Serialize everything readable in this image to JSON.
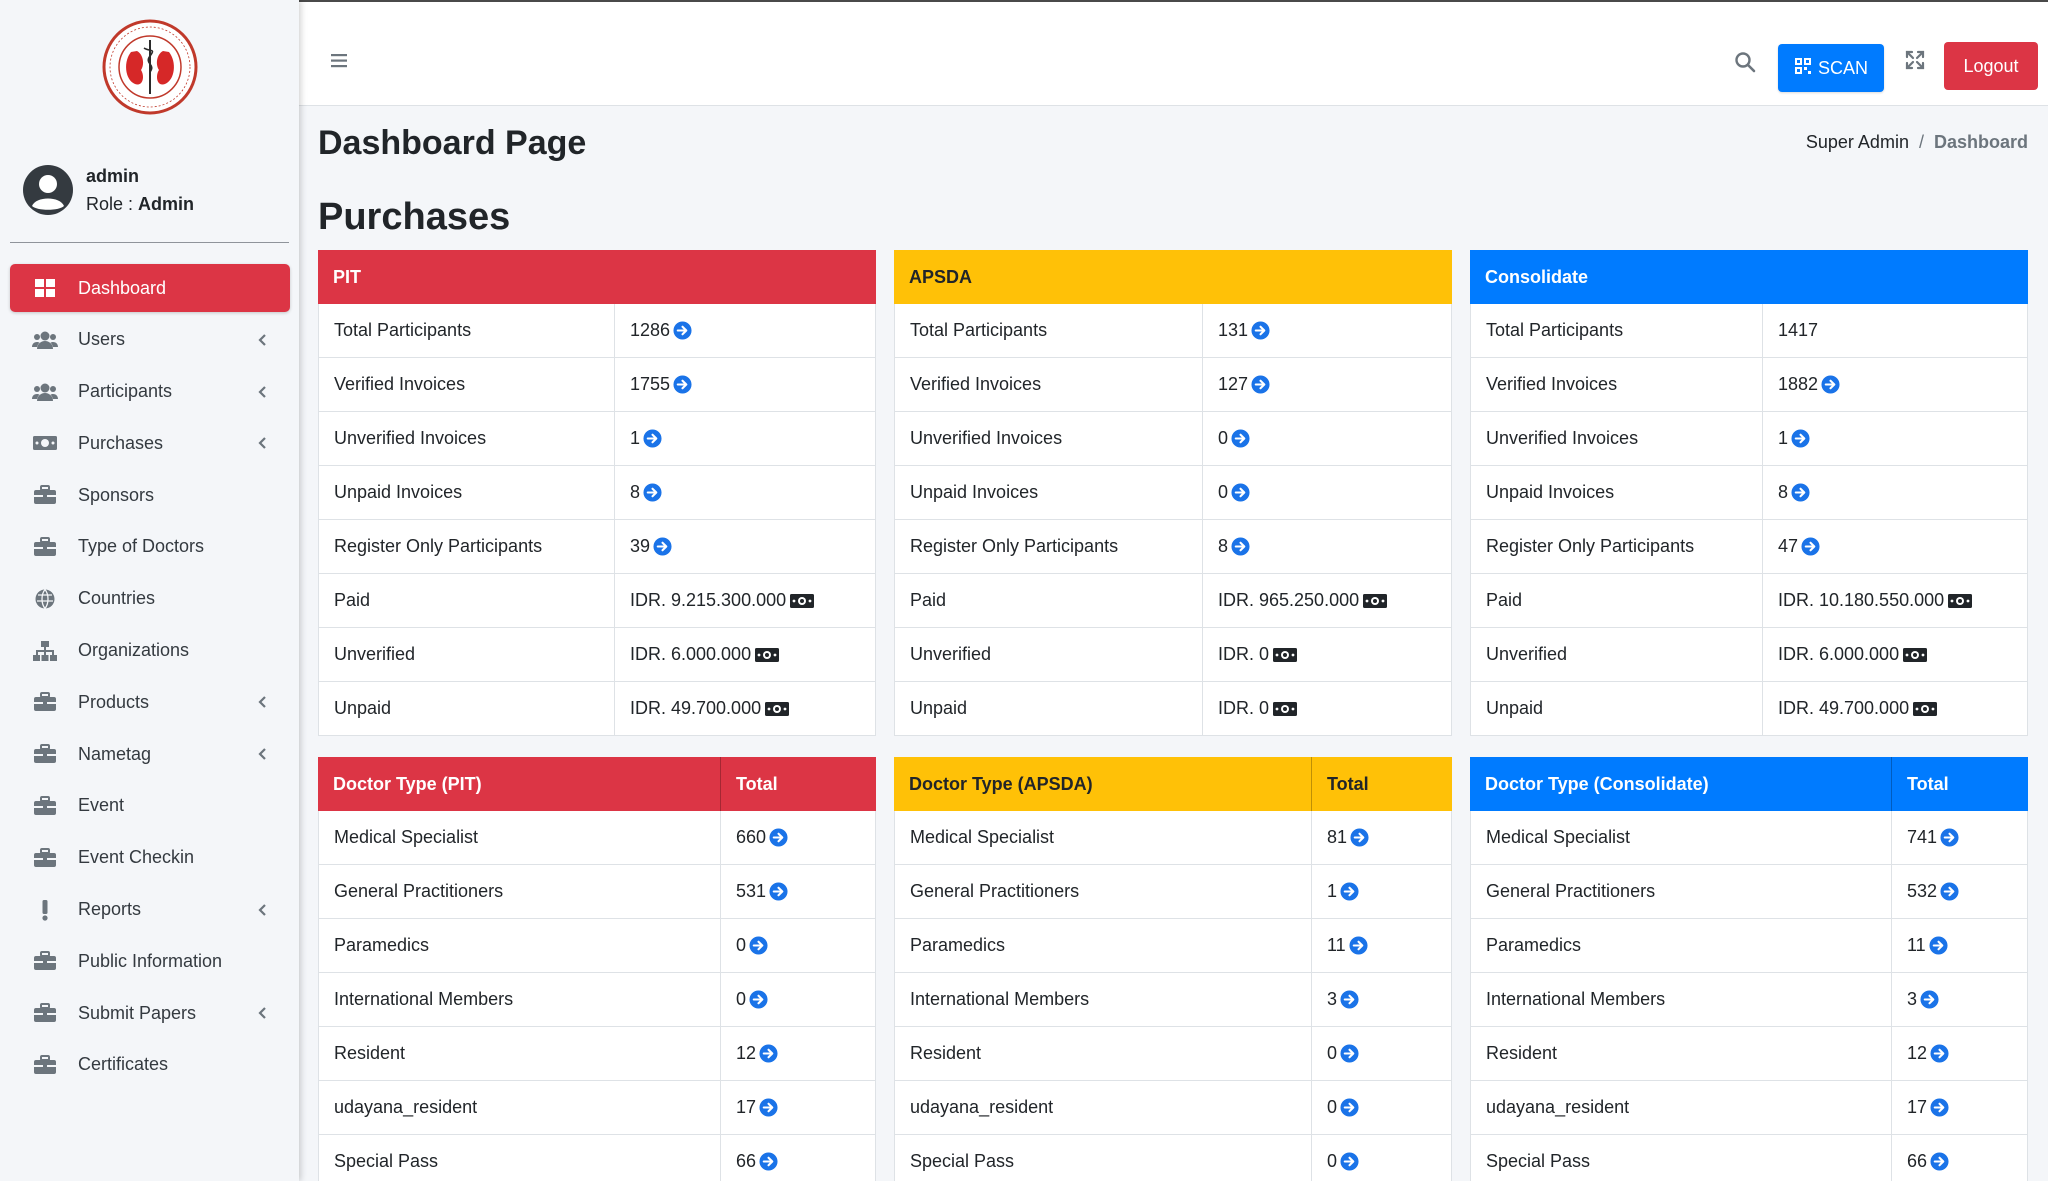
{
  "sidebar": {
    "user": {
      "name": "admin",
      "role_label": "Role : ",
      "role": "Admin"
    },
    "items": [
      {
        "label": "Dashboard",
        "icon": "dashboard-grid-icon",
        "active": true,
        "chevron": false
      },
      {
        "label": "Users",
        "icon": "users-icon",
        "chevron": true
      },
      {
        "label": "Participants",
        "icon": "users-icon",
        "chevron": true
      },
      {
        "label": "Purchases",
        "icon": "money-bill-icon",
        "chevron": true
      },
      {
        "label": "Sponsors",
        "icon": "briefcase-icon",
        "chevron": false
      },
      {
        "label": "Type of Doctors",
        "icon": "briefcase-icon",
        "chevron": false
      },
      {
        "label": "Countries",
        "icon": "globe-icon",
        "chevron": false
      },
      {
        "label": "Organizations",
        "icon": "sitemap-icon",
        "chevron": false
      },
      {
        "label": "Products",
        "icon": "briefcase-icon",
        "chevron": true
      },
      {
        "label": "Nametag",
        "icon": "briefcase-icon",
        "chevron": true
      },
      {
        "label": "Event",
        "icon": "briefcase-icon",
        "chevron": false
      },
      {
        "label": "Event Checkin",
        "icon": "briefcase-icon",
        "chevron": false
      },
      {
        "label": "Reports",
        "icon": "exclamation-icon",
        "chevron": true
      },
      {
        "label": "Public Information",
        "icon": "briefcase-icon",
        "chevron": false
      },
      {
        "label": "Submit Papers",
        "icon": "briefcase-icon",
        "chevron": true
      },
      {
        "label": "Certificates",
        "icon": "briefcase-icon",
        "chevron": false
      }
    ]
  },
  "topbar": {
    "scan_label": "SCAN",
    "logout_label": "Logout"
  },
  "page": {
    "title": "Dashboard Page",
    "breadcrumb": {
      "parent": "Super Admin",
      "separator": "/",
      "current": "Dashboard"
    },
    "section_title": "Purchases"
  },
  "purchase_cards": [
    {
      "title": "PIT",
      "color": "#dc3545",
      "rows": [
        {
          "label": "Total Participants",
          "value": "1286",
          "icon": "arrow"
        },
        {
          "label": "Verified Invoices",
          "value": "1755",
          "icon": "arrow"
        },
        {
          "label": "Unverified Invoices",
          "value": "1",
          "icon": "arrow"
        },
        {
          "label": "Unpaid Invoices",
          "value": "8",
          "icon": "arrow"
        },
        {
          "label": "Register Only Participants",
          "value": "39",
          "icon": "arrow"
        },
        {
          "label": "Paid",
          "value": "IDR. 9.215.300.000",
          "icon": "money"
        },
        {
          "label": "Unverified",
          "value": "IDR. 6.000.000",
          "icon": "money"
        },
        {
          "label": "Unpaid",
          "value": "IDR. 49.700.000",
          "icon": "money"
        }
      ]
    },
    {
      "title": "APSDA",
      "color": "#ffc107",
      "rows": [
        {
          "label": "Total Participants",
          "value": "131",
          "icon": "arrow"
        },
        {
          "label": "Verified Invoices",
          "value": "127",
          "icon": "arrow"
        },
        {
          "label": "Unverified Invoices",
          "value": "0",
          "icon": "arrow"
        },
        {
          "label": "Unpaid Invoices",
          "value": "0",
          "icon": "arrow"
        },
        {
          "label": "Register Only Participants",
          "value": "8",
          "icon": "arrow"
        },
        {
          "label": "Paid",
          "value": "IDR. 965.250.000",
          "icon": "money"
        },
        {
          "label": "Unverified",
          "value": "IDR. 0",
          "icon": "money"
        },
        {
          "label": "Unpaid",
          "value": "IDR. 0",
          "icon": "money"
        }
      ]
    },
    {
      "title": "Consolidate",
      "color": "#007bff",
      "rows": [
        {
          "label": "Total Participants",
          "value": "1417",
          "icon": "none"
        },
        {
          "label": "Verified Invoices",
          "value": "1882",
          "icon": "arrow"
        },
        {
          "label": "Unverified Invoices",
          "value": "1",
          "icon": "arrow"
        },
        {
          "label": "Unpaid Invoices",
          "value": "8",
          "icon": "arrow"
        },
        {
          "label": "Register Only Participants",
          "value": "47",
          "icon": "arrow"
        },
        {
          "label": "Paid",
          "value": "IDR. 10.180.550.000",
          "icon": "money"
        },
        {
          "label": "Unverified",
          "value": "IDR. 6.000.000",
          "icon": "money"
        },
        {
          "label": "Unpaid",
          "value": "IDR. 49.700.000",
          "icon": "money"
        }
      ]
    }
  ],
  "doctor_cards": [
    {
      "title": "Doctor Type (PIT)",
      "total_label": "Total",
      "rows": [
        {
          "label": "Medical Specialist",
          "value": "660"
        },
        {
          "label": "General Practitioners",
          "value": "531"
        },
        {
          "label": "Paramedics",
          "value": "0"
        },
        {
          "label": "International Members",
          "value": "0"
        },
        {
          "label": "Resident",
          "value": "12"
        },
        {
          "label": "udayana_resident",
          "value": "17"
        },
        {
          "label": "Special Pass",
          "value": "66"
        }
      ]
    },
    {
      "title": "Doctor Type (APSDA)",
      "total_label": "Total",
      "rows": [
        {
          "label": "Medical Specialist",
          "value": "81"
        },
        {
          "label": "General Practitioners",
          "value": "1"
        },
        {
          "label": "Paramedics",
          "value": "11"
        },
        {
          "label": "International Members",
          "value": "3"
        },
        {
          "label": "Resident",
          "value": "0"
        },
        {
          "label": "udayana_resident",
          "value": "0"
        },
        {
          "label": "Special Pass",
          "value": "0"
        }
      ]
    },
    {
      "title": "Doctor Type (Consolidate)",
      "total_label": "Total",
      "rows": [
        {
          "label": "Medical Specialist",
          "value": "741"
        },
        {
          "label": "General Practitioners",
          "value": "532"
        },
        {
          "label": "Paramedics",
          "value": "11"
        },
        {
          "label": "International Members",
          "value": "3"
        },
        {
          "label": "Resident",
          "value": "12"
        },
        {
          "label": "udayana_resident",
          "value": "17"
        },
        {
          "label": "Special Pass",
          "value": "66"
        }
      ]
    }
  ],
  "colors": {
    "red": "#dc3545",
    "yellow": "#ffc107",
    "blue": "#007bff",
    "arrow": "#1a73e8"
  }
}
